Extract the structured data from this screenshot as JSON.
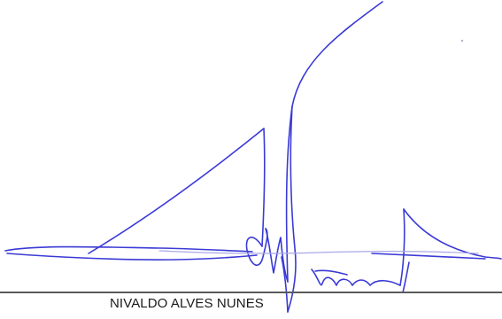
{
  "signature_block": {
    "signer_name": "NIVALDO ALVES NUNES",
    "ink_color": "#3a3ad6",
    "line_color": "#5a5a5a"
  }
}
